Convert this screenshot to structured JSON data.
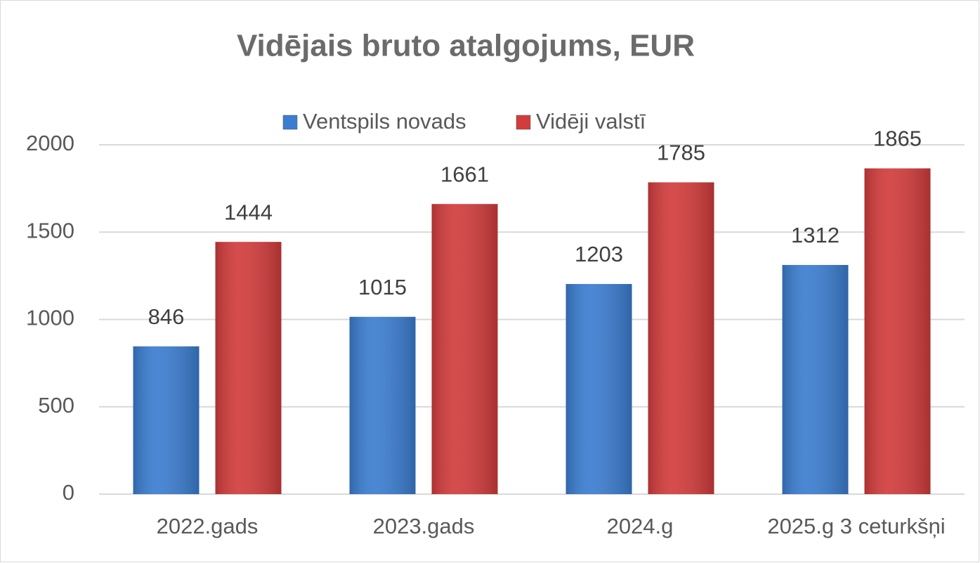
{
  "chart_data": {
    "type": "bar",
    "title": "Vidējais bruto atalgojums, EUR",
    "categories": [
      "2022.gads",
      "2023.gads",
      "2024.g",
      "2025.g 3 ceturkšņi"
    ],
    "series": [
      {
        "name": "Ventspils novads",
        "color": "#3b7dd0",
        "values": [
          846,
          1015,
          1203,
          1312
        ]
      },
      {
        "name": "Vidēji valstī",
        "color": "#d23c3c",
        "values": [
          1444,
          1661,
          1785,
          1865
        ]
      }
    ],
    "ylim": [
      0,
      2000
    ],
    "yticks": [
      0,
      500,
      1000,
      1500,
      2000
    ],
    "grid": true,
    "legend": "top"
  }
}
